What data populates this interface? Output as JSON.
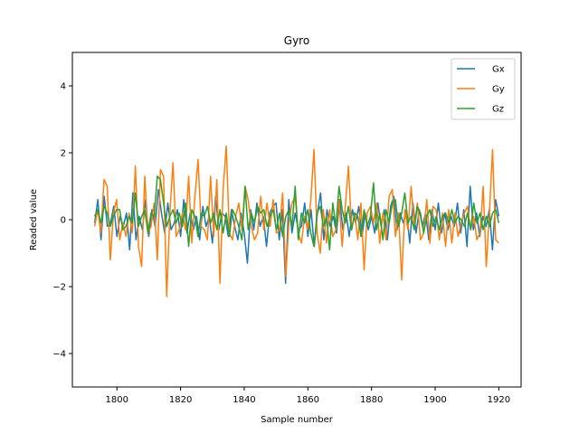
{
  "chart_data": {
    "type": "line",
    "title": "Gyro",
    "xlabel": "Sample number",
    "ylabel": "Readed value",
    "xlim": [
      1786,
      1927
    ],
    "ylim": [
      -5,
      5
    ],
    "xticks": [
      1800,
      1820,
      1840,
      1860,
      1880,
      1900,
      1920
    ],
    "yticks": [
      -4,
      -2,
      0,
      2,
      4
    ],
    "grid": false,
    "legend": "top-right",
    "x_start": 1793,
    "x_end": 1920,
    "series": [
      {
        "name": "Gx",
        "color": "#1f77b4",
        "values": [
          -0.1,
          0.6,
          -0.6,
          0.7,
          -0.2,
          -0.1,
          0.4,
          -0.5,
          0.1,
          -0.2,
          0.2,
          -0.9,
          0.8,
          -0.6,
          0.1,
          -0.3,
          0.6,
          -0.5,
          0.3,
          -0.2,
          0.9,
          0.2,
          -0.4,
          0.5,
          -0.3,
          -0.1,
          0.3,
          -0.5,
          0.6,
          -0.4,
          0.2,
          -0.3,
          0.1,
          -0.6,
          0.4,
          -0.2,
          0.1,
          -0.7,
          0.7,
          -0.3,
          0.2,
          0.1,
          -0.5,
          0.3,
          -0.2,
          -0.6,
          0.2,
          -0.4,
          -1.3,
          0.3,
          -0.3,
          0.5,
          -0.2,
          0.1,
          -0.8,
          0.2,
          0.4,
          0.5,
          -0.6,
          0.3,
          -1.9,
          0.6,
          -0.4,
          0.2,
          -0.3,
          -0.2,
          0.5,
          -0.5,
          0.3,
          -0.8,
          0.2,
          0.8,
          -0.6,
          0.3,
          -0.2,
          0.1,
          -0.4,
          0.6,
          -0.3,
          0.2,
          -0.5,
          0.3,
          -0.1,
          0.4,
          -0.5,
          0.2,
          -0.3,
          0.1,
          -0.4,
          0.5,
          -0.2,
          0.3,
          -0.6,
          0.4,
          0.7,
          -0.3,
          0.2,
          -0.1,
          0.3,
          -0.7,
          0.5,
          -0.4,
          0.3,
          -0.2,
          0.2,
          -0.6,
          0.3,
          -0.3,
          0.5,
          -0.4,
          0.2,
          -0.3,
          0.1,
          -0.2,
          0.5,
          -0.4,
          0.3,
          -0.8,
          1.0,
          -0.3,
          0.2,
          -0.5,
          0.1,
          -0.2,
          0.3,
          -0.9,
          0.6,
          0.1
        ]
      },
      {
        "name": "Gy",
        "color": "#ff7f0e",
        "values": [
          -0.2,
          0.3,
          -0.4,
          1.2,
          1.0,
          -1.2,
          0.2,
          0.6,
          -0.6,
          -0.1,
          -0.5,
          0.2,
          -0.4,
          1.6,
          -0.8,
          -1.4,
          1.3,
          -0.4,
          -0.2,
          0.5,
          -1.2,
          1.5,
          1.3,
          -2.3,
          0.2,
          1.7,
          -0.5,
          -0.3,
          0.2,
          -0.3,
          1.3,
          -0.7,
          0.7,
          1.8,
          -0.2,
          -0.3,
          -0.6,
          1.3,
          -0.5,
          1.2,
          -1.9,
          0.9,
          2.2,
          -0.4,
          -0.6,
          0.1,
          0.5,
          -0.3,
          1.0,
          0.6,
          -0.2,
          -0.6,
          -0.4,
          0.7,
          -0.3,
          0.5,
          -0.2,
          0.6,
          -0.4,
          -0.3,
          0.8,
          -1.7,
          -0.1,
          0.5,
          0.7,
          -0.4,
          -0.7,
          0.1,
          -0.3,
          0.6,
          2.1,
          -0.4,
          -1.0,
          0.3,
          -0.7,
          0.3,
          -0.5,
          -0.3,
          0.6,
          -0.8,
          0.4,
          1.6,
          -0.3,
          0.2,
          -0.6,
          0.5,
          -1.5,
          0.2,
          0.4,
          -0.1,
          0.5,
          -0.7,
          0.2,
          -0.6,
          0.7,
          0.9,
          -0.5,
          0.2,
          -1.8,
          0.3,
          -0.3,
          1.0,
          -0.2,
          0.5,
          -0.6,
          -0.4,
          0.6,
          -0.7,
          0.4,
          0.3,
          -0.6,
          0.2,
          -0.8,
          0.3,
          -0.7,
          0.2,
          -0.5,
          -0.1,
          0.2,
          0.4,
          -0.3,
          0.1,
          -0.6,
          -0.4,
          1.0,
          -1.4,
          0.2,
          2.1,
          -0.6,
          -0.7
        ]
      },
      {
        "name": "Gz",
        "color": "#2ca02c",
        "values": [
          0.1,
          0.3,
          -0.1,
          0.4,
          0.2,
          -0.2,
          0.1,
          0.3,
          0.3,
          -0.3,
          -0.2,
          0.1,
          -0.1,
          0.8,
          -0.2,
          0.1,
          0.3,
          -0.4,
          0.2,
          0.1,
          1.3,
          1.2,
          0.5,
          -0.2,
          0.1,
          0.3,
          -0.1,
          0.2,
          -0.2,
          0.5,
          -0.8,
          0.3,
          0.1,
          -0.5,
          0.2,
          0.1,
          0.4,
          -0.1,
          0.2,
          -0.3,
          0.3,
          -0.4,
          0.2,
          -0.5,
          0.3,
          0.1,
          -0.2,
          -0.6,
          1.0,
          -0.3,
          0.2,
          -0.1,
          0.4,
          0.2,
          0.3,
          -0.2,
          0.1,
          0.3,
          -0.3,
          0.2,
          -0.5,
          0.1,
          0.3,
          -0.2,
          1.0,
          -0.6,
          0.2,
          -0.1,
          0.3,
          -0.4,
          -0.8,
          0.2,
          0.4,
          -0.2,
          0.1,
          -0.9,
          0.5,
          -0.2,
          1.0,
          0.3,
          -0.1,
          0.4,
          -0.3,
          0.2,
          0.1,
          -0.5,
          0.3,
          -0.2,
          0.1,
          1.1,
          -0.3,
          0.2,
          -0.6,
          0.3,
          -0.1,
          0.5,
          0.6,
          -0.2,
          0.2,
          0.8,
          -0.1,
          0.1,
          -0.3,
          0.4,
          0.2,
          -0.4,
          0.1,
          0.3,
          -0.2,
          0.1,
          -0.3,
          0.1,
          0.2,
          -0.1,
          0.3,
          -0.1,
          0.1,
          0.0,
          -0.2,
          0.2,
          -0.3,
          0.5,
          -0.1,
          0.2,
          -0.3,
          0.1,
          -0.2,
          0.2,
          0.3,
          -0.1
        ]
      }
    ]
  }
}
